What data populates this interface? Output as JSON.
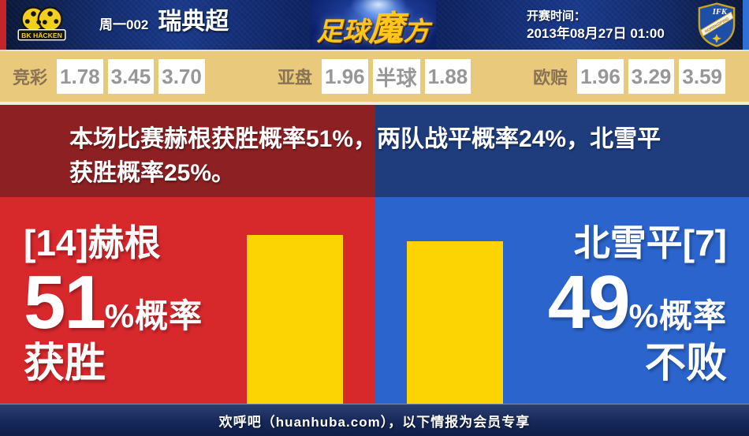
{
  "header": {
    "match_code": "周一002",
    "league": "瑞典超",
    "site_logo_part1": "足球",
    "site_logo_part2": "魔",
    "site_logo_part3": "方",
    "kickoff_label": "开赛时间：",
    "kickoff_time": "2013年08月27日 01:00",
    "home_crest_text": "BK HÄCKEN",
    "away_crest_top": "IFK",
    "away_crest_band": "NORRKÖPING"
  },
  "odds": {
    "jingcai": {
      "label": "竞彩",
      "values": [
        "1.78",
        "3.45",
        "3.70"
      ]
    },
    "yapan": {
      "label": "亚盘",
      "values": [
        "1.96",
        "半球",
        "1.88"
      ]
    },
    "oupei": {
      "label": "欧赔",
      "values": [
        "1.96",
        "3.29",
        "3.59"
      ]
    }
  },
  "summary": {
    "line1": "本场比赛赫根获胜概率51%，两队战平概率24%，北雪平",
    "line2": "获胜概率25%。"
  },
  "home_panel": {
    "team": "[14]赫根",
    "percent": "51",
    "percent_suffix": "%概率",
    "outcome": "获胜",
    "bar_percent": 51
  },
  "away_panel": {
    "team": "北雪平[7]",
    "percent": "49",
    "percent_suffix": "%概率",
    "outcome": "不败",
    "bar_percent": 49
  },
  "footer": {
    "text": "欢呼吧（huanhuba.com），以下情报为会员专享"
  },
  "chart_data": {
    "type": "bar",
    "categories": [
      "赫根获胜",
      "两队战平",
      "北雪平获胜"
    ],
    "values": [
      51,
      24,
      25
    ],
    "bars_shown": [
      {
        "name": "赫根 获胜概率",
        "value": 51
      },
      {
        "name": "北雪平 不败概率",
        "value": 49
      }
    ],
    "title": "胜平负概率"
  },
  "colors": {
    "home_accent": "#d7282c",
    "home_dark": "#8c2022",
    "away_accent": "#2b64cc",
    "away_dark": "#1f3d7d",
    "bar_yellow": "#fcd403",
    "odds_bar_bg": "#e9ca7c",
    "header_navy": "#0f2464",
    "footer_navy": "#16285a",
    "edge_red": "#c4242c",
    "edge_blue": "#2f6fd8"
  }
}
